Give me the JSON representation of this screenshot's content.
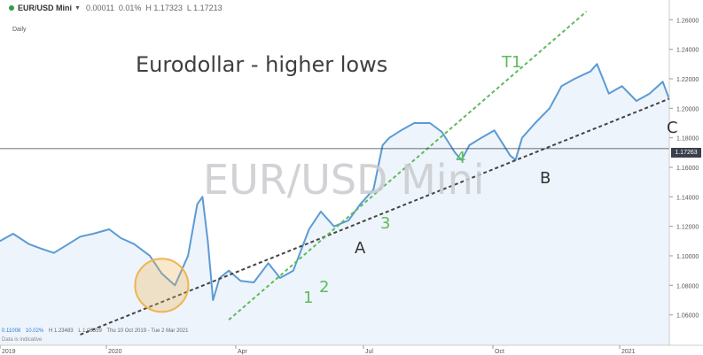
{
  "header": {
    "symbol": "EUR/USD Mini",
    "change_abs": "0.00011",
    "change_pct": "0.01%",
    "high": "H 1.17323",
    "low": "L 1.17213"
  },
  "interval": "Daily",
  "headline": "Eurodollar - higher lows",
  "watermark": "EUR/USD Mini",
  "footer": {
    "last": "0.11008",
    "pct": "10.02%",
    "high": "H 1.23483",
    "low": "L 1.06359",
    "range": "Thu 10 Oct 2019 - Tue 2 Mar 2021",
    "note": "Data is indicative"
  },
  "last_price_tag": "1.17263",
  "labels": {
    "T1": "T1",
    "one": "1",
    "two": "2",
    "three": "3",
    "four": "4",
    "A": "A",
    "B": "B",
    "C": "C"
  },
  "colors": {
    "price_line": "#5b9bd5",
    "area_fill": "#eef4fb",
    "trend_black": "#444444",
    "trend_green": "#5dbb5d",
    "circle": "#f0b450",
    "accent_dot": "#2e9e4a"
  },
  "chart_data": {
    "type": "line",
    "series": [
      {
        "x": [
          "2019-10-10",
          "2019-10-20",
          "2019-11-01",
          "2019-11-10",
          "2019-11-20",
          "2019-12-01",
          "2019-12-10",
          "2019-12-20",
          "2020-01-01",
          "2020-01-10",
          "2020-01-20",
          "2020-02-01",
          "2020-02-10",
          "2020-02-20",
          "2020-03-01",
          "2020-03-08",
          "2020-03-12",
          "2020-03-16",
          "2020-03-20",
          "2020-03-25",
          "2020-04-01",
          "2020-04-10",
          "2020-04-20",
          "2020-05-01",
          "2020-05-10",
          "2020-05-20",
          "2020-06-01",
          "2020-06-10",
          "2020-06-20",
          "2020-07-01",
          "2020-07-10",
          "2020-07-20",
          "2020-07-27",
          "2020-08-01",
          "2020-08-10",
          "2020-08-20",
          "2020-09-01",
          "2020-09-10",
          "2020-09-20",
          "2020-09-25",
          "2020-10-01",
          "2020-10-10",
          "2020-10-20",
          "2020-11-01",
          "2020-11-05",
          "2020-11-10",
          "2020-11-20",
          "2020-12-01",
          "2020-12-10",
          "2020-12-20",
          "2021-01-01",
          "2021-01-06",
          "2021-01-15",
          "2021-01-25",
          "2021-02-05",
          "2021-02-15",
          "2021-02-25",
          "2021-03-02"
        ],
        "values": [
          1.11,
          1.115,
          1.108,
          1.105,
          1.102,
          1.108,
          1.113,
          1.115,
          1.118,
          1.112,
          1.108,
          1.1,
          1.088,
          1.08,
          1.1,
          1.135,
          1.14,
          1.11,
          1.07,
          1.085,
          1.09,
          1.083,
          1.082,
          1.095,
          1.085,
          1.09,
          1.118,
          1.13,
          1.12,
          1.124,
          1.135,
          1.145,
          1.175,
          1.18,
          1.185,
          1.19,
          1.19,
          1.184,
          1.17,
          1.165,
          1.175,
          1.18,
          1.185,
          1.168,
          1.165,
          1.18,
          1.19,
          1.2,
          1.215,
          1.22,
          1.225,
          1.23,
          1.21,
          1.215,
          1.205,
          1.21,
          1.218,
          1.206
        ]
      }
    ],
    "y_ticks": [
      "1.26000",
      "1.24000",
      "1.22000",
      "1.20000",
      "1.18000",
      "1.16000",
      "1.14000",
      "1.12000",
      "1.10000",
      "1.08000",
      "1.06000"
    ],
    "x_ticks": [
      "2019",
      "2020",
      "Apr",
      "Jul",
      "Oct",
      "2021"
    ],
    "ylim": [
      1.05,
      1.27
    ],
    "current_price": 1.17263,
    "grid": false,
    "annotations": {
      "trendlines": [
        {
          "name": "support",
          "style": "dashed",
          "from": [
            "2019-12-10",
            1.0466
          ],
          "to": [
            "2021-03-02",
            1.2065
          ]
        },
        {
          "name": "T1",
          "style": "dashed",
          "from": [
            "2020-04-01",
            1.0566
          ],
          "to": [
            "2020-12-29",
            1.2656
          ]
        }
      ],
      "highlight_circle": {
        "x": "2020-02-10",
        "y": 1.08
      }
    }
  }
}
